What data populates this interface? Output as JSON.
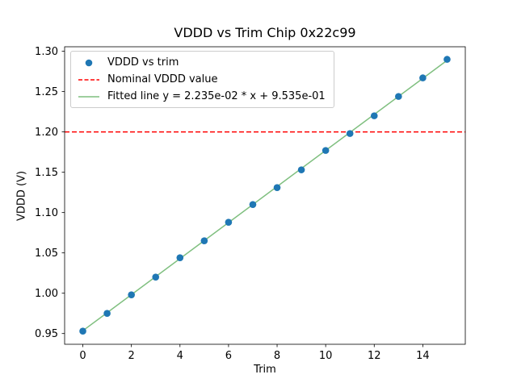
{
  "figure": {
    "title": "VDDD vs Trim Chip 0x22c99",
    "xlabel": "Trim",
    "ylabel": "VDDD (V)"
  },
  "chart_data": {
    "type": "scatter",
    "title": "VDDD vs Trim Chip 0x22c99",
    "xlabel": "Trim",
    "ylabel": "VDDD (V)",
    "xlim": [
      -0.75,
      15.75
    ],
    "ylim": [
      0.9367,
      1.3056
    ],
    "x_ticks": [
      0,
      2,
      4,
      6,
      8,
      10,
      12,
      14
    ],
    "y_ticks": [
      0.95,
      1.0,
      1.05,
      1.1,
      1.15,
      1.2,
      1.25,
      1.3
    ],
    "grid": false,
    "legend_position": "upper-left",
    "x": [
      0,
      1,
      2,
      3,
      4,
      5,
      6,
      7,
      8,
      9,
      10,
      11,
      12,
      13,
      14,
      15
    ],
    "scatter": {
      "name": "VDDD vs trim",
      "color": "#1f77b4",
      "values": [
        0.953,
        0.975,
        0.998,
        1.02,
        1.044,
        1.065,
        1.088,
        1.11,
        1.131,
        1.153,
        1.177,
        1.198,
        1.22,
        1.244,
        1.267,
        1.29
      ]
    },
    "nominal_line": {
      "name": "Nominal VDDD value",
      "color": "#ff0000",
      "style": "dashed",
      "value": 1.2
    },
    "fit_line": {
      "name": "Fitted line y = 2.235e-02 * x + 9.535e-01",
      "color": "#7fbf7f",
      "slope": 0.02235,
      "intercept": 0.9535
    },
    "legend_items": [
      {
        "label": "VDDD vs trim",
        "marker": "dot",
        "color": "#1f77b4"
      },
      {
        "label": "Nominal VDDD value",
        "marker": "dashed-line",
        "color": "#ff0000"
      },
      {
        "label": "Fitted line y = 2.235e-02 * x + 9.535e-01",
        "marker": "line",
        "color": "#7fbf7f"
      }
    ]
  }
}
